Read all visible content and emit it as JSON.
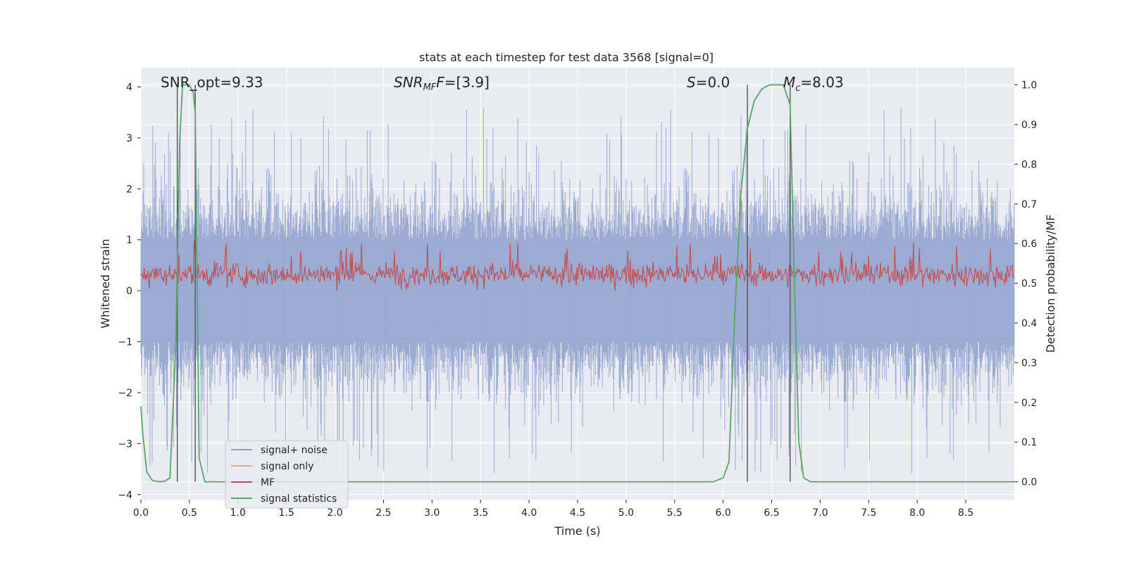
{
  "chart_data": {
    "type": "line",
    "title": "stats at each timestep for test data 3568 [signal=0]",
    "xlabel": "Time (s)",
    "ylabel_left": "Whitened strain",
    "ylabel_right": "Detection probability/MF",
    "xlim": [
      0.0,
      9.0
    ],
    "ylim_left": [
      -4.1,
      4.38
    ],
    "ylim_right": [
      -0.045,
      1.0435
    ],
    "x_ticks": [
      "0.0",
      "0.5",
      "1.0",
      "1.5",
      "2.0",
      "2.5",
      "3.0",
      "3.5",
      "4.0",
      "4.5",
      "5.0",
      "5.5",
      "6.0",
      "6.5",
      "7.0",
      "7.5",
      "8.0",
      "8.5"
    ],
    "y_ticks_left": [
      "−4",
      "−3",
      "−2",
      "−1",
      "0",
      "1",
      "2",
      "3",
      "4"
    ],
    "y_ticks_right": [
      "0.0",
      "0.1",
      "0.2",
      "0.3",
      "0.4",
      "0.5",
      "0.6",
      "0.7",
      "0.8",
      "0.9",
      "1.0"
    ],
    "grid": true,
    "background": "#eaeaf2",
    "annotations": {
      "snr_opt": "SNR_opt=9.33",
      "snr_mf_name": "SNR",
      "snr_mf_sub": "MF",
      "snr_mf_value": "=[3.9]",
      "s_name": "S",
      "s_value": "=0.0",
      "mc_name": "M",
      "mc_sub": "c",
      "mc_value": "=8.03"
    },
    "vertical_markers": [
      0.375,
      0.56,
      6.25,
      6.69
    ],
    "noise_envelope_abs_max": 3.6,
    "mf_range": [
      0.0,
      1.0
    ],
    "series": [
      {
        "name": "signal+ noise",
        "color": "#8da0cb",
        "axis": "left",
        "style": "dense noise, amplitude ~±1.5 with spikes to ±3.6"
      },
      {
        "name": "signal only",
        "color": "#e8a989",
        "axis": "left",
        "values": []
      },
      {
        "name": "MF",
        "color": "#c44e52",
        "axis": "left",
        "style": "dense trace between 0.0 and ~0.9"
      },
      {
        "name": "signal statistics",
        "color": "#55a868",
        "axis": "right",
        "x": [
          0.0,
          0.02,
          0.06,
          0.12,
          0.2,
          0.25,
          0.3,
          0.36,
          0.4,
          0.43,
          0.46,
          0.5,
          0.54,
          0.56,
          0.6,
          0.66,
          0.72,
          1.0,
          5.5,
          5.9,
          6.0,
          6.06,
          6.12,
          6.18,
          6.25,
          6.32,
          6.4,
          6.48,
          6.56,
          6.62,
          6.69,
          6.74,
          6.78,
          6.83,
          6.9,
          7.0,
          9.0
        ],
        "values": [
          0.19,
          0.12,
          0.025,
          0.003,
          0.0,
          0.002,
          0.01,
          0.35,
          0.86,
          1.0,
          1.0,
          1.0,
          0.98,
          0.93,
          0.06,
          0.0,
          0.0,
          0.0,
          0.0,
          0.0,
          0.01,
          0.05,
          0.42,
          0.72,
          0.89,
          0.96,
          0.99,
          1.0,
          1.0,
          1.0,
          0.95,
          0.45,
          0.1,
          0.01,
          0.0,
          0.0,
          0.0
        ]
      }
    ]
  }
}
